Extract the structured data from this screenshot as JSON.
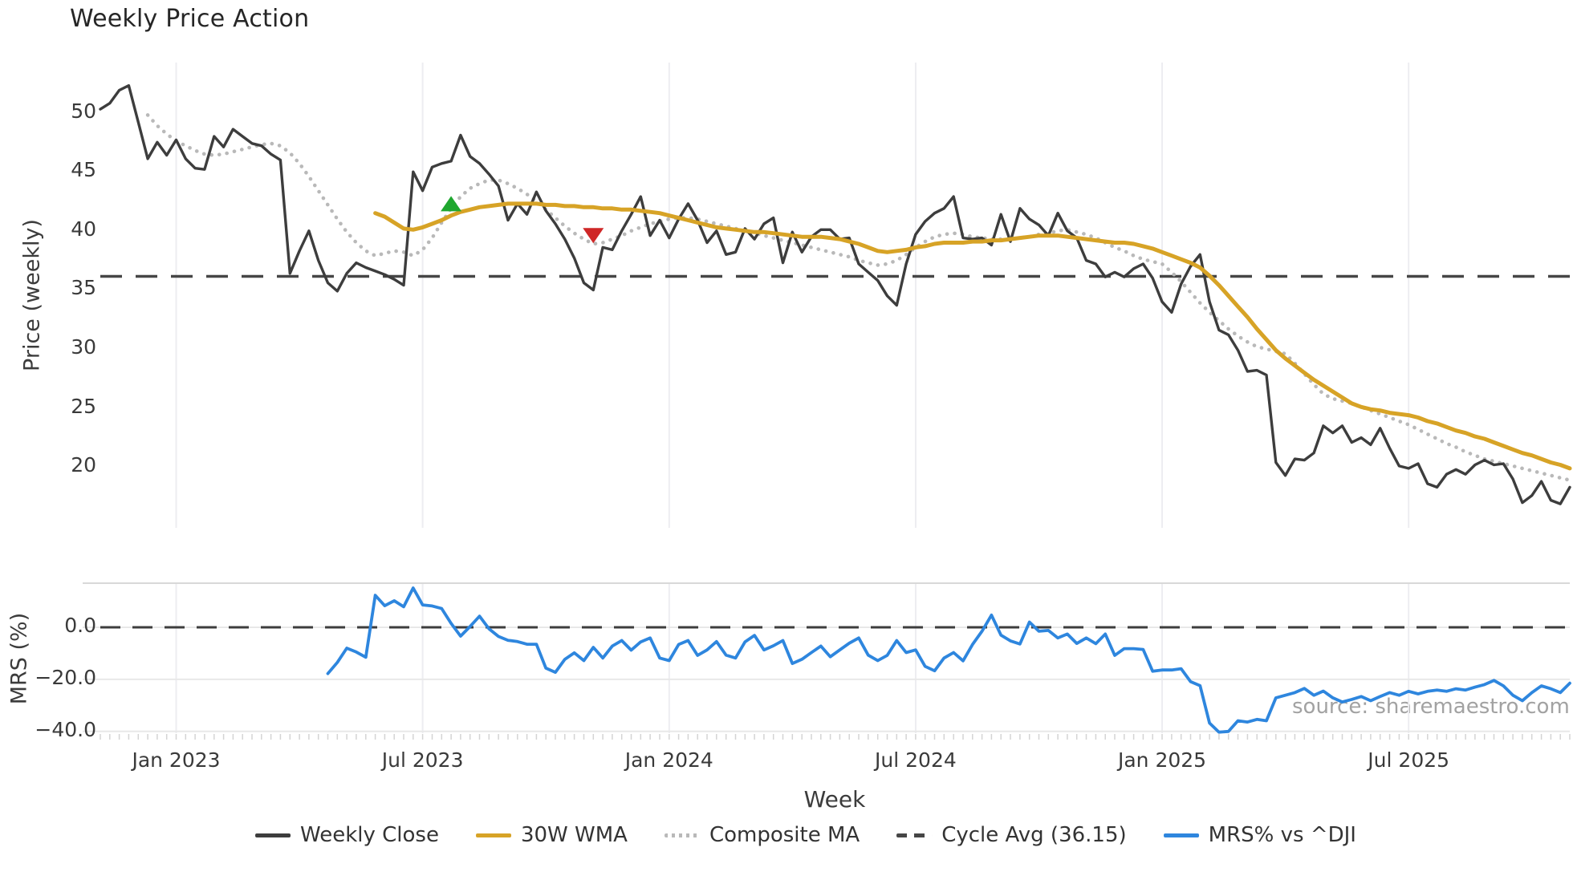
{
  "title": "Weekly Price Action",
  "watermark": "source: sharemaestro.com",
  "x_label": "Week",
  "legend": {
    "items": [
      {
        "label": "Weekly Close",
        "color": "#3d3d3d",
        "style": "solid"
      },
      {
        "label": "30W WMA",
        "color": "#d7a326",
        "style": "solid"
      },
      {
        "label": "Composite MA",
        "color": "#b9b9b9",
        "style": "dotted"
      },
      {
        "label": "Cycle Avg (36.15)",
        "color": "#464646",
        "style": "dashed"
      },
      {
        "label": "MRS% vs ^DJI",
        "color": "#2e86de",
        "style": "solid"
      }
    ]
  },
  "chart_data": [
    {
      "type": "line",
      "title": "Weekly Price Action",
      "xlabel": "Week",
      "ylabel": "Price (weekly)",
      "x_tick_labels": [
        "Jan 2023",
        "Jul 2023",
        "Jan 2024",
        "Jul 2024",
        "Jan 2025",
        "Jul 2025"
      ],
      "x_tick_weeks": [
        8,
        34,
        60,
        86,
        112,
        138
      ],
      "weeks_total": 156,
      "y_ticks": [
        50,
        45,
        40,
        35,
        30,
        25,
        20
      ],
      "y_tick_labels": [
        "50",
        "45",
        "40",
        "35",
        "30",
        "25",
        "20"
      ],
      "ylim": [
        14.8,
        54.2
      ],
      "grid": "vertical-only",
      "cycle_avg": 36.15,
      "series": [
        {
          "name": "Weekly Close",
          "start_week": 0,
          "values": [
            50.3,
            50.8,
            51.9,
            52.3,
            49.2,
            46.1,
            47.5,
            46.4,
            47.7,
            46.1,
            45.3,
            45.2,
            48.0,
            47.1,
            48.6,
            48.0,
            47.4,
            47.2,
            46.5,
            46.0,
            36.4,
            38.3,
            40.0,
            37.5,
            35.6,
            34.9,
            36.4,
            37.3,
            36.9,
            36.6,
            36.3,
            35.9,
            35.4,
            45.0,
            43.4,
            45.4,
            45.7,
            45.9,
            48.1,
            46.3,
            45.7,
            44.8,
            43.8,
            40.9,
            42.3,
            41.4,
            43.3,
            41.7,
            40.6,
            39.3,
            37.7,
            35.6,
            35.0,
            38.6,
            38.4,
            40.0,
            41.4,
            42.9,
            39.6,
            40.9,
            39.4,
            41.0,
            42.3,
            40.9,
            39.0,
            40.0,
            38.0,
            38.2,
            40.2,
            39.3,
            40.6,
            41.1,
            37.3,
            39.9,
            38.2,
            39.5,
            40.1,
            40.1,
            39.3,
            39.4,
            37.2,
            36.5,
            35.8,
            34.5,
            33.7,
            37.2,
            39.7,
            40.8,
            41.5,
            41.9,
            42.9,
            39.4,
            39.3,
            39.4,
            38.8,
            41.4,
            39.1,
            41.9,
            41.0,
            40.5,
            39.6,
            41.5,
            40.0,
            39.4,
            37.5,
            37.2,
            36.1,
            36.5,
            36.1,
            36.8,
            37.2,
            36.0,
            34.0,
            33.1,
            35.5,
            37.0,
            38.0,
            34.0,
            31.6,
            31.2,
            29.9,
            28.1,
            28.2,
            27.8,
            20.4,
            19.3,
            20.7,
            20.6,
            21.2,
            23.5,
            22.9,
            23.5,
            22.1,
            22.5,
            21.9,
            23.3,
            21.6,
            20.1,
            19.9,
            20.3,
            18.6,
            18.3,
            19.4,
            19.8,
            19.4,
            20.2,
            20.6,
            20.2,
            20.3,
            19.0,
            17.0,
            17.6,
            18.8,
            17.2,
            16.9,
            18.3
          ]
        },
        {
          "name": "30W WMA",
          "start_week": 29,
          "values": [
            41.5,
            41.2,
            40.7,
            40.2,
            40.1,
            40.3,
            40.6,
            40.9,
            41.3,
            41.6,
            41.8,
            42.0,
            42.1,
            42.2,
            42.3,
            42.3,
            42.3,
            42.3,
            42.2,
            42.2,
            42.1,
            42.1,
            42.0,
            42.0,
            41.9,
            41.9,
            41.8,
            41.8,
            41.7,
            41.6,
            41.5,
            41.3,
            41.1,
            40.9,
            40.7,
            40.5,
            40.3,
            40.2,
            40.1,
            40.0,
            39.9,
            39.9,
            39.8,
            39.7,
            39.6,
            39.5,
            39.5,
            39.5,
            39.4,
            39.3,
            39.1,
            38.9,
            38.6,
            38.3,
            38.2,
            38.3,
            38.4,
            38.6,
            38.7,
            38.9,
            39.0,
            39.0,
            39.0,
            39.1,
            39.1,
            39.2,
            39.2,
            39.3,
            39.4,
            39.5,
            39.6,
            39.6,
            39.6,
            39.5,
            39.4,
            39.3,
            39.2,
            39.1,
            39.0,
            39.0,
            38.9,
            38.7,
            38.5,
            38.2,
            37.9,
            37.6,
            37.3,
            36.9,
            36.2,
            35.4,
            34.5,
            33.6,
            32.7,
            31.7,
            30.8,
            29.9,
            29.2,
            28.6,
            28.0,
            27.4,
            26.9,
            26.4,
            25.9,
            25.4,
            25.1,
            24.9,
            24.8,
            24.6,
            24.5,
            24.4,
            24.2,
            23.9,
            23.7,
            23.4,
            23.1,
            22.9,
            22.6,
            22.4,
            22.1,
            21.8,
            21.5,
            21.2,
            21.0,
            20.7,
            20.4,
            20.2,
            19.9
          ]
        },
        {
          "name": "Composite MA",
          "start_week": 5,
          "values": [
            49.8,
            48.9,
            48.2,
            47.6,
            47.2,
            46.8,
            46.5,
            46.4,
            46.5,
            46.7,
            46.9,
            47.1,
            47.3,
            47.4,
            47.2,
            46.6,
            45.7,
            44.6,
            43.4,
            42.2,
            41.0,
            39.9,
            39.0,
            38.3,
            37.9,
            38.1,
            38.3,
            38.2,
            37.9,
            38.4,
            39.4,
            40.7,
            41.9,
            42.9,
            43.6,
            44.0,
            44.3,
            44.3,
            44.0,
            43.6,
            43.1,
            42.5,
            41.8,
            41.1,
            40.4,
            39.8,
            39.3,
            38.9,
            39.0,
            39.3,
            39.6,
            40.0,
            40.3,
            40.6,
            40.8,
            41.0,
            41.1,
            41.1,
            41.0,
            40.8,
            40.6,
            40.4,
            40.2,
            40.0,
            39.8,
            39.6,
            39.4,
            39.2,
            39.0,
            38.8,
            38.6,
            38.4,
            38.2,
            38.0,
            37.8,
            37.5,
            37.3,
            37.1,
            37.2,
            37.5,
            38.0,
            38.6,
            39.1,
            39.5,
            39.7,
            39.8,
            39.7,
            39.5,
            39.4,
            39.3,
            39.3,
            39.3,
            39.4,
            39.5,
            39.7,
            39.8,
            40.0,
            40.1,
            39.9,
            39.7,
            39.4,
            39.0,
            38.6,
            38.3,
            37.9,
            37.6,
            37.4,
            37.2,
            36.5,
            35.7,
            34.8,
            33.9,
            33.1,
            32.4,
            31.7,
            31.1,
            30.6,
            30.2,
            30.0,
            29.8,
            29.6,
            28.8,
            27.9,
            27.0,
            26.2,
            25.8,
            25.6,
            25.4,
            25.1,
            24.8,
            24.5,
            24.2,
            23.9,
            23.6,
            23.2,
            22.8,
            22.4,
            22.0,
            21.7,
            21.3,
            21.0,
            20.7,
            20.5,
            20.3,
            20.1,
            19.9,
            19.7,
            19.5,
            19.3,
            19.1,
            18.9
          ]
        }
      ],
      "markers": [
        {
          "name": "buy-signal",
          "shape": "triangle-up",
          "color": "#1fa72f",
          "week": 37,
          "y": 42.3
        },
        {
          "name": "sell-signal",
          "shape": "triangle-down",
          "color": "#cf2727",
          "week": 52,
          "y": 39.6
        }
      ]
    },
    {
      "type": "line",
      "ylabel": "MRS (%)",
      "y_ticks": [
        0.0,
        -20.0,
        -40.0
      ],
      "y_tick_labels": [
        "0.0",
        "−20.0",
        "−40.0"
      ],
      "ylim": [
        -46,
        17
      ],
      "zero_line": 0.0,
      "series": [
        {
          "name": "MRS% vs ^DJI",
          "start_week": 24,
          "values": [
            -17.8,
            -13.5,
            -8.0,
            -9.5,
            -11.5,
            12.3,
            8.3,
            10.2,
            7.9,
            15.1,
            8.6,
            8.2,
            7.2,
            1.5,
            -3.4,
            0.3,
            4.3,
            -0.6,
            -3.5,
            -5.0,
            -5.5,
            -6.5,
            -6.5,
            -15.7,
            -17.3,
            -12.3,
            -9.8,
            -12.8,
            -7.7,
            -11.8,
            -7.2,
            -5.1,
            -8.8,
            -5.6,
            -4.1,
            -11.8,
            -12.8,
            -6.6,
            -5.1,
            -10.8,
            -8.7,
            -5.5,
            -10.7,
            -11.8,
            -5.6,
            -3.1,
            -8.7,
            -7.1,
            -5.1,
            -13.9,
            -12.3,
            -9.7,
            -7.2,
            -11.3,
            -8.7,
            -6.1,
            -4.1,
            -10.7,
            -12.8,
            -10.8,
            -5.1,
            -9.7,
            -8.7,
            -15.0,
            -16.7,
            -11.8,
            -9.7,
            -12.9,
            -6.6,
            -1.5,
            4.7,
            -3.0,
            -5.2,
            -6.4,
            2.0,
            -1.5,
            -1.2,
            -4.1,
            -2.6,
            -6.2,
            -4.1,
            -6.3,
            -2.6,
            -10.8,
            -8.2,
            -8.2,
            -8.5,
            -16.9,
            -16.4,
            -16.4,
            -15.9,
            -20.9,
            -22.4,
            -36.8,
            -40.3,
            -40.0,
            -35.9,
            -36.4,
            -35.4,
            -35.9,
            -27.1,
            -26.1,
            -25.1,
            -23.5,
            -26.1,
            -24.5,
            -27.1,
            -28.7,
            -27.7,
            -26.6,
            -28.2,
            -26.6,
            -25.1,
            -26.1,
            -24.6,
            -25.6,
            -24.6,
            -24.1,
            -24.6,
            -23.6,
            -24.1,
            -23.0,
            -22.0,
            -20.4,
            -22.5,
            -26.1,
            -28.2,
            -25.1,
            -22.5,
            -23.6,
            -25.1,
            -21.5
          ]
        }
      ]
    }
  ]
}
